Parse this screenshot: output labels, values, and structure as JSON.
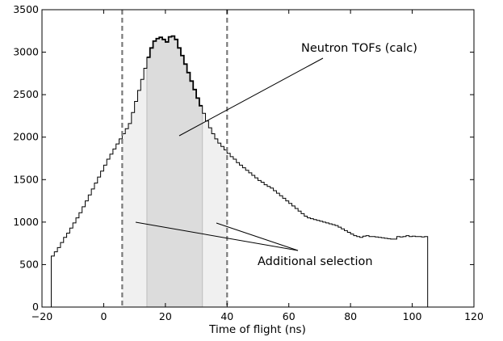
{
  "chart_data": {
    "type": "histogram",
    "x_label": "Time of flight (ns)",
    "y_label": "",
    "xlim": [
      -20,
      120
    ],
    "ylim": [
      0,
      3500
    ],
    "x_ticks": [
      -20,
      0,
      20,
      40,
      60,
      80,
      100,
      120
    ],
    "x_tick_labels": [
      "−20",
      "0",
      "20",
      "40",
      "60",
      "80",
      "100",
      "120"
    ],
    "y_ticks": [
      0,
      500,
      1000,
      1500,
      2000,
      2500,
      3000,
      3500
    ],
    "y_tick_labels": [
      "0",
      "500",
      "1000",
      "1500",
      "2000",
      "2500",
      "3000",
      "3500"
    ],
    "bin_width": 1,
    "bin_start": -17,
    "counts": [
      600,
      650,
      700,
      760,
      820,
      870,
      930,
      990,
      1050,
      1110,
      1180,
      1250,
      1320,
      1390,
      1460,
      1530,
      1600,
      1670,
      1740,
      1800,
      1860,
      1920,
      1980,
      2040,
      2100,
      2160,
      2290,
      2420,
      2550,
      2680,
      2810,
      2940,
      3050,
      3130,
      3160,
      3175,
      3150,
      3120,
      3180,
      3190,
      3150,
      3050,
      2960,
      2860,
      2760,
      2660,
      2560,
      2460,
      2370,
      2280,
      2190,
      2110,
      2040,
      1980,
      1930,
      1890,
      1850,
      1810,
      1770,
      1740,
      1700,
      1670,
      1640,
      1610,
      1580,
      1550,
      1520,
      1490,
      1470,
      1440,
      1420,
      1400,
      1370,
      1340,
      1310,
      1280,
      1250,
      1220,
      1190,
      1160,
      1130,
      1100,
      1070,
      1050,
      1040,
      1030,
      1020,
      1010,
      1000,
      990,
      980,
      970,
      960,
      940,
      920,
      900,
      880,
      860,
      840,
      830,
      820,
      835,
      840,
      830,
      830,
      825,
      820,
      815,
      810,
      805,
      800,
      800,
      830,
      825,
      830,
      840,
      830,
      835,
      830,
      830,
      825,
      830
    ],
    "series": [
      {
        "name": "Neutron TOFs (calc)",
        "from": 14,
        "to": 32,
        "fill": "#dcdcdc"
      },
      {
        "name": "Additional selection",
        "ranges": [
          [
            6,
            14
          ],
          [
            32,
            40
          ]
        ],
        "fill": "#f0f0f0"
      }
    ],
    "vlines": [
      6,
      40
    ],
    "annotations": [
      {
        "text": "Neutron TOFs (calc)"
      },
      {
        "text": "Additional selection"
      }
    ],
    "grid": false
  }
}
